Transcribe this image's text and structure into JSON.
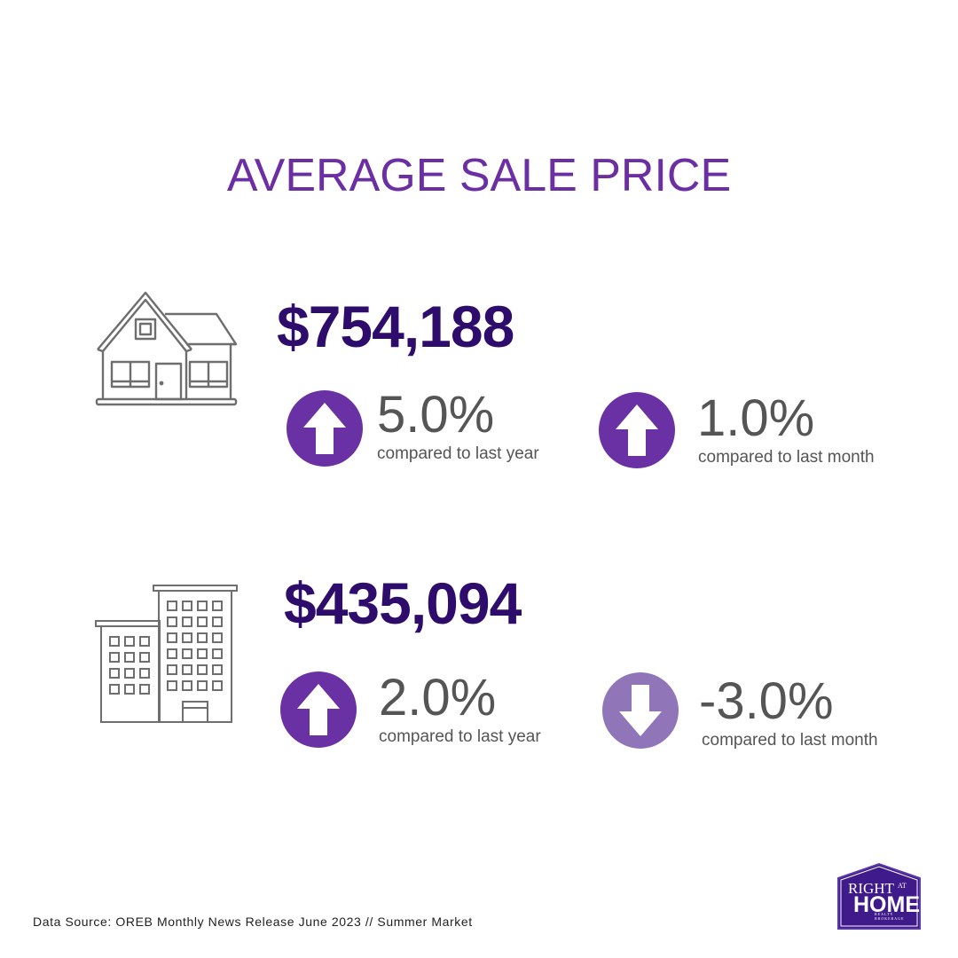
{
  "title": "AVERAGE SALE PRICE",
  "rows": [
    {
      "property_icon": "house-icon",
      "price": "$754,188",
      "stats": [
        {
          "arrow": "up",
          "arrow_icon": "up-arrow-icon",
          "value": "5.0%",
          "caption": "compared to last year",
          "color": "#6a31a5"
        },
        {
          "arrow": "up",
          "arrow_icon": "up-arrow-icon",
          "value": "1.0%",
          "caption": "compared to last month",
          "color": "#6a31a5"
        }
      ]
    },
    {
      "property_icon": "condo-building-icon",
      "price": "$435,094",
      "stats": [
        {
          "arrow": "up",
          "arrow_icon": "up-arrow-icon",
          "value": "2.0%",
          "caption": "compared to last year",
          "color": "#6a31a5"
        },
        {
          "arrow": "down",
          "arrow_icon": "down-arrow-icon",
          "value": "-3.0%",
          "caption": "compared to last month",
          "color": "#9075b9"
        }
      ]
    }
  ],
  "footer": "Data Source: OREB Monthly News Release June 2023  // Summer Market",
  "logo": {
    "line1": "RIGHT",
    "line1_small": "AT",
    "line2": "HOME",
    "line3": "REALTY",
    "line4": "BROKERAGE",
    "color": "#3f1a8a"
  }
}
